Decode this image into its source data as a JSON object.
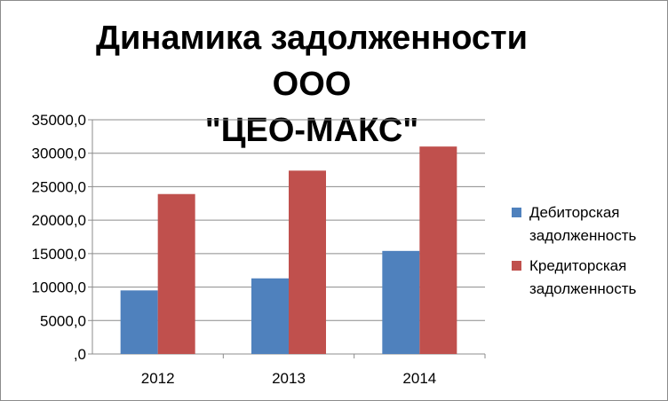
{
  "chart_data": {
    "type": "bar",
    "title_lines": [
      "Динамика задолженности ООО",
      "\"ЦЕО-МАКС\""
    ],
    "categories": [
      "2012",
      "2013",
      "2014"
    ],
    "series": [
      {
        "name": "Дебиторская задолженность",
        "values": [
          9500,
          11300,
          15400
        ],
        "color": "#4f81bd"
      },
      {
        "name": "Кредиторская задолженность",
        "values": [
          23900,
          27400,
          31000
        ],
        "color": "#c0504d"
      }
    ],
    "ylim": [
      0,
      35000
    ],
    "yticks": [
      0,
      5000,
      10000,
      15000,
      20000,
      25000,
      30000,
      35000
    ],
    "ytick_labels": [
      ",0",
      "5000,0",
      "10000,0",
      "15000,0",
      "20000,0",
      "25000,0",
      "30000,0",
      "35000,0"
    ],
    "xlabel": "",
    "ylabel": "",
    "grid": true,
    "legend_position": "right"
  }
}
